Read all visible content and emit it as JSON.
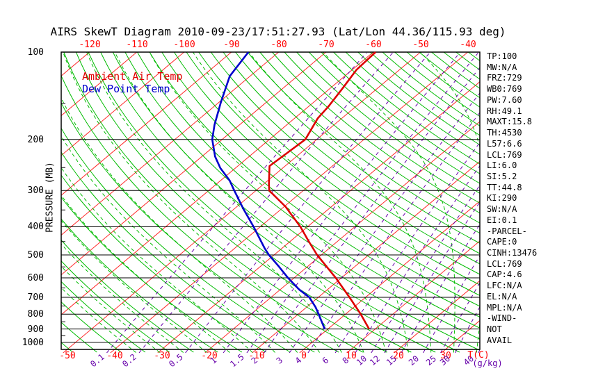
{
  "title": "AIRS SkewT Diagram 2010-09-23/17:51:27.93 (Lat/Lon 44.36/115.93 deg)",
  "legend": {
    "ambient": "Ambient Air Temp",
    "dewpoint": "Dew Point Temp"
  },
  "stats_panel": {
    "lines": [
      "TP:100",
      "MW:N/A",
      "FRZ:729",
      "WB0:769",
      "PW:7.60",
      "RH:49.1",
      "MAXT:15.8",
      "TH:4530",
      "L57:6.6",
      "LCL:769",
      "LI:6.0",
      "SI:5.2",
      "TT:44.8",
      "KI:290",
      "SW:N/A",
      "EI:0.1",
      "-PARCEL-",
      "CAPE:0",
      "CINH:13476",
      "LCL:769",
      "CAP:4.6",
      "LFC:N/A",
      "EL:N/A",
      "MPL:N/A",
      "-WIND-",
      "NOT",
      "AVAIL"
    ]
  },
  "colors": {
    "isotherm_red": "#ff2a2a",
    "adiabat_green": "#00bb00",
    "moist_green": "#00bb00",
    "mixing_purple": "#6600aa",
    "pressure_black": "#000000",
    "temp_curve": "#dd0000",
    "dew_curve": "#0000cc",
    "tick_red": "#ff0000"
  },
  "chart_data": {
    "type": "skewt",
    "title": "AIRS SkewT Diagram 2010-09-23/17:51:27.93 (Lat/Lon 44.36/115.93 deg)",
    "x_axis": {
      "label": "T(C)",
      "bottom_ticks_c": [
        -50,
        -40,
        -30,
        -20,
        -10,
        0,
        10,
        20,
        30
      ],
      "top_ticks_c": [
        -120,
        -110,
        -100,
        -90,
        -80,
        -70,
        -60,
        -50,
        -40
      ]
    },
    "y_axis": {
      "label": "PRESSURE (MB)",
      "ticks_mb": [
        100,
        200,
        300,
        400,
        500,
        600,
        700,
        800,
        900,
        1000
      ],
      "scale": "log",
      "range_mb": [
        100,
        1059
      ]
    },
    "mixing_ratio": {
      "unit": "(g/kg)",
      "lines_g_kg": [
        0.1,
        0.2,
        0.5,
        1,
        1.5,
        2,
        3,
        4,
        6,
        8,
        10,
        12,
        15,
        20,
        25,
        30,
        40
      ]
    },
    "series": [
      {
        "name": "Ambient Air Temp",
        "color": "#dd0000",
        "points_p_t": [
          [
            100,
            -59.5
          ],
          [
            115,
            -59.1
          ],
          [
            133,
            -57.4
          ],
          [
            154,
            -55.8
          ],
          [
            169,
            -55.1
          ],
          [
            200,
            -52.4
          ],
          [
            220,
            -52.8
          ],
          [
            247,
            -53.3
          ],
          [
            285,
            -48.9
          ],
          [
            300,
            -47.2
          ],
          [
            341,
            -39.7
          ],
          [
            400,
            -31.5
          ],
          [
            448,
            -26.2
          ],
          [
            500,
            -20.9
          ],
          [
            600,
            -11.2
          ],
          [
            700,
            -3.4
          ],
          [
            800,
            3.2
          ],
          [
            900,
            8.7
          ]
        ]
      },
      {
        "name": "Dew Point Temp",
        "color": "#0000cc",
        "points_p_t": [
          [
            100,
            -86.4
          ],
          [
            121,
            -84.3
          ],
          [
            149,
            -79.6
          ],
          [
            178,
            -75.3
          ],
          [
            200,
            -72.1
          ],
          [
            229,
            -67.2
          ],
          [
            251,
            -63.2
          ],
          [
            277,
            -58.1
          ],
          [
            300,
            -54.6
          ],
          [
            346,
            -48.2
          ],
          [
            400,
            -41.4
          ],
          [
            473,
            -33.8
          ],
          [
            500,
            -31.1
          ],
          [
            546,
            -26.3
          ],
          [
            600,
            -21.3
          ],
          [
            658,
            -16.0
          ],
          [
            700,
            -11.9
          ],
          [
            757,
            -8.1
          ],
          [
            800,
            -5.7
          ],
          [
            900,
            -0.7
          ]
        ]
      }
    ]
  }
}
